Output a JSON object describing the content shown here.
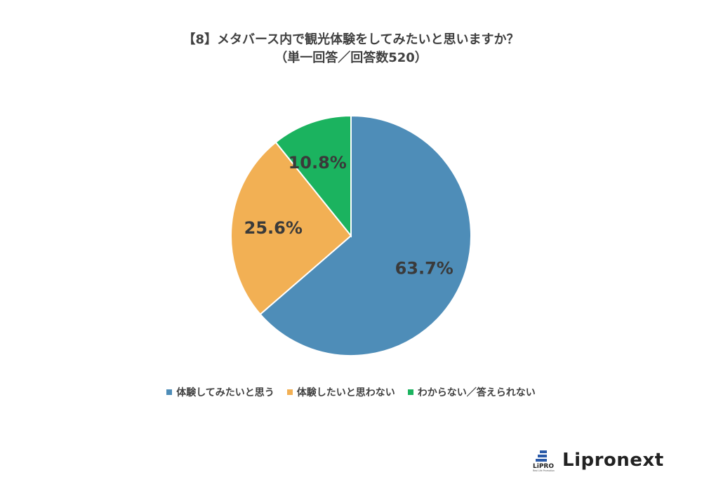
{
  "chart_data": {
    "type": "pie",
    "title": "【8】メタバース内で観光体験をしてみたいと思いますか？",
    "subtitle": "（単一回答／回答数520）",
    "slices": [
      {
        "label": "体験してみたいと思う",
        "value": 63.7,
        "display": "63.7%",
        "color": "#4E8DB8"
      },
      {
        "label": "体験したいと思わない",
        "value": 25.6,
        "display": "25.6%",
        "color": "#F2B054"
      },
      {
        "label": "わからない／答えられない",
        "value": 10.8,
        "display": "10.8%",
        "color": "#1BB35F"
      }
    ],
    "start_angle": "12 o'clock",
    "direction": "clockwise",
    "legend_position": "bottom"
  },
  "logo": {
    "brand": "Lipronext",
    "mark_text": "LiPRO",
    "mark_subtext": "Real Life Promotion"
  }
}
